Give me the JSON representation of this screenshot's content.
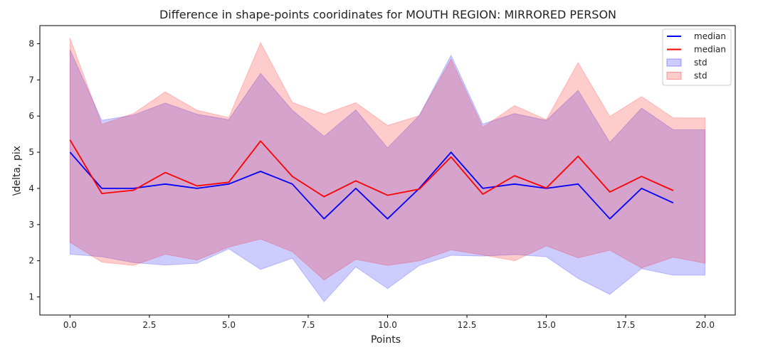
{
  "chart_data": {
    "type": "line",
    "title": "Difference in shape-points cooridinates for MOUTH REGION: MIRRORED PERSON",
    "xlabel": "Points",
    "ylabel": "\\delta, pix",
    "xlim": [
      -0.95,
      20.95
    ],
    "ylim": [
      0.5,
      8.5
    ],
    "xticks": [
      0.0,
      2.5,
      5.0,
      7.5,
      10.0,
      12.5,
      15.0,
      17.5,
      20.0
    ],
    "xtick_labels": [
      "0.0",
      "2.5",
      "5.0",
      "7.5",
      "10.0",
      "12.5",
      "15.0",
      "17.5",
      "20.0"
    ],
    "yticks": [
      1,
      2,
      3,
      4,
      5,
      6,
      7,
      8
    ],
    "ytick_labels": [
      "1",
      "2",
      "3",
      "4",
      "5",
      "6",
      "7",
      "8"
    ],
    "grid": false,
    "legend_position": "top-right",
    "series": [
      {
        "name": "median",
        "kind": "line",
        "color": "#0000ff",
        "x": [
          0,
          1,
          2,
          3,
          4,
          5,
          6,
          7,
          8,
          9,
          10,
          11,
          12,
          13,
          14,
          15,
          16,
          17,
          18,
          19
        ],
        "y": [
          5.0,
          4.0,
          4.0,
          4.12,
          4.0,
          4.12,
          4.47,
          4.12,
          3.16,
          4.0,
          3.16,
          4.0,
          5.0,
          4.0,
          4.12,
          4.0,
          4.12,
          3.16,
          4.0,
          3.6
        ]
      },
      {
        "name": "median",
        "kind": "line",
        "color": "#ff0000",
        "x": [
          0,
          1,
          2,
          3,
          4,
          5,
          6,
          7,
          8,
          9,
          10,
          11,
          12,
          13,
          14,
          15,
          16,
          17,
          18,
          19
        ],
        "y": [
          5.34,
          3.86,
          3.95,
          4.44,
          4.07,
          4.17,
          5.31,
          4.33,
          3.77,
          4.21,
          3.81,
          3.98,
          4.87,
          3.84,
          4.35,
          4.01,
          4.89,
          3.9,
          4.33,
          3.94
        ]
      },
      {
        "name": "std",
        "kind": "band",
        "color": "#0000ff",
        "opacity": 0.2,
        "x": [
          0,
          1,
          2,
          3,
          4,
          5,
          6,
          7,
          8,
          9,
          10,
          11,
          12,
          13,
          14,
          15,
          16,
          17,
          18,
          19,
          20
        ],
        "upper": [
          7.83,
          5.88,
          6.03,
          6.36,
          6.05,
          5.9,
          7.18,
          6.16,
          5.44,
          6.17,
          5.12,
          6.02,
          7.68,
          5.78,
          6.07,
          5.88,
          6.71,
          5.27,
          6.22,
          5.62,
          5.62
        ],
        "lower": [
          2.18,
          2.11,
          1.95,
          1.88,
          1.93,
          2.33,
          1.76,
          2.07,
          0.87,
          1.83,
          1.23,
          1.87,
          2.15,
          2.13,
          2.17,
          2.11,
          1.51,
          1.07,
          1.78,
          1.6,
          1.6
        ]
      },
      {
        "name": "std",
        "kind": "band",
        "color": "#ff0000",
        "opacity": 0.2,
        "x": [
          0,
          1,
          2,
          3,
          4,
          5,
          6,
          7,
          8,
          9,
          10,
          11,
          12,
          13,
          14,
          15,
          16,
          17,
          18,
          19,
          20
        ],
        "upper": [
          8.15,
          5.77,
          6.07,
          6.67,
          6.16,
          5.96,
          8.03,
          6.38,
          6.05,
          6.37,
          5.74,
          6.01,
          7.57,
          5.69,
          6.29,
          5.9,
          7.48,
          5.99,
          6.54,
          5.95,
          5.95
        ],
        "lower": [
          2.51,
          1.96,
          1.87,
          2.18,
          2.02,
          2.38,
          2.6,
          2.25,
          1.47,
          2.04,
          1.87,
          2.0,
          2.3,
          2.16,
          2.0,
          2.41,
          2.08,
          2.29,
          1.8,
          2.1,
          1.93
        ]
      }
    ]
  }
}
